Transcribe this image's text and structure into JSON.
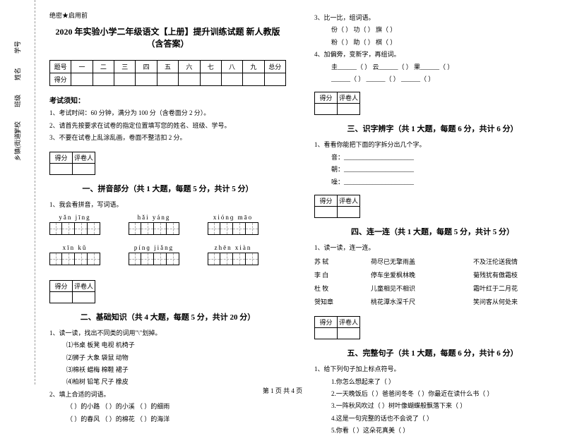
{
  "binding": {
    "items": [
      "学号",
      "姓名",
      "班级",
      "学校",
      "乡镇(街道)"
    ],
    "marks": [
      "题",
      "答",
      "准",
      "不",
      "内",
      "线",
      "封",
      "密"
    ]
  },
  "secret": "绝密★启用前",
  "title": "2020 年实验小学二年级语文【上册】提升训练试题 新人教版（含答案）",
  "scoreTable": {
    "headers": [
      "题号",
      "一",
      "二",
      "三",
      "四",
      "五",
      "六",
      "七",
      "八",
      "九",
      "总分"
    ],
    "row2": "得分"
  },
  "notice": {
    "title": "考试须知：",
    "items": [
      "1、考试时间：60 分钟，满分为 100 分（含卷面分 2 分）。",
      "2、请首先按要求在试卷的指定位置填写您的姓名、班级、学号。",
      "3、不要在试卷上乱涂乱画，卷面不整洁扣 2 分。"
    ]
  },
  "scoreBox": {
    "c1": "得分",
    "c2": "评卷人"
  },
  "s1": {
    "title": "一、拼音部分（共 1 大题，每题 5 分，共计 5 分）",
    "q1": "1、我会看拼音，写词语。",
    "pinyin": [
      [
        "yǎn  jīng",
        "hǎi  yáng",
        "xiónɡ  māo"
      ],
      [
        "xīn  kǔ",
        "pínɡ  jiǎng",
        "zhēn  xiàn"
      ]
    ]
  },
  "s2": {
    "title": "二、基础知识（共 4 大题，每题 5 分，共计 20 分）",
    "q1": "1、读一读，找出不同类的词用\"\\\"划掉。",
    "groups": [
      "⑴书桌    板凳    电视    机椅子",
      "⑵狮子    大象    袋鼠    动物",
      "⑶棉袄    蜡梅    棉鞋    裙子",
      "⑷柏树    铅笔    尺子    橡皮"
    ],
    "q2": "2、填上合适的词语。",
    "blanks": [
      "（       ）的小路    （       ）的小溪    （       ）的细雨",
      "（       ）的春风    （       ）的棉花    （       ）的海洋"
    ]
  },
  "s2r": {
    "q3": "3、比一比，组词语。",
    "pairs": [
      "份（        ）    功（        ）    旗（        ）",
      "粉（        ）    助（        ）    棋（        ）"
    ],
    "q4": "4、加偏旁，变新字，再组词。",
    "items": [
      "圭______（        ）  云______（        ）  果______（        ）",
      "  ______（        ）    ______（        ）    ______（        ）"
    ]
  },
  "s3": {
    "title": "三、识字辨字（共 1 大题，每题 6 分，共计 6 分）",
    "q1": "1、看看你能把下面的字拆分出几个字。",
    "items": [
      "音：______________________",
      "朝：______________________",
      "噪：______________________"
    ]
  },
  "s4": {
    "title": "四、连一连（共 1 大题，每题 5 分，共计 5 分）",
    "q1": "1、读一读，连一连。",
    "rows": [
      [
        "苏 轼",
        "荷尽已无擎雨盖",
        "不及汪伦送我情"
      ],
      [
        "李 白",
        "停车坐爱枫林晚",
        "菊残犹有傲霜枝"
      ],
      [
        "杜 牧",
        "儿童相见不相识",
        "霜叶红于二月花"
      ],
      [
        "贺知章",
        "桃花潭水深千尺",
        "笑问客从何处来"
      ]
    ]
  },
  "s5": {
    "title": "五、完整句子（共 1 大题，每题 6 分，共计 6 分）",
    "q1": "1、给下列句子加上标点符号。",
    "items": [
      "1.你怎么想起来了（    ）",
      "2.一天晚饭后（    ）爸爸问冬冬（    ）你最近在读什么书（    ）",
      "3.一阵秋风吹过（    ）树叶像蝴蝶般飘落下来（    ）",
      "4.这是一句完整的话也不会说了（    ）",
      "5.你看（    ）这朵花真美（    ）"
    ]
  },
  "footer": "第 1 页 共 4 页"
}
